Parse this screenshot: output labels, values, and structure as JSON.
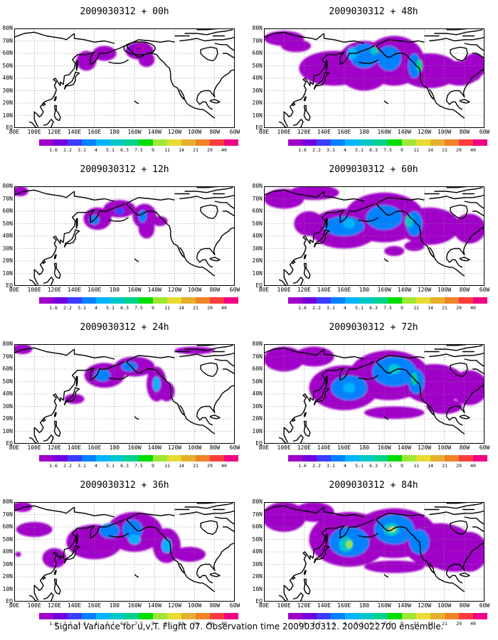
{
  "panels": [
    {
      "title": "2009030312 + 00h",
      "lead": 0
    },
    {
      "title": "2009030312 + 48h",
      "lead": 48
    },
    {
      "title": "2009030312 + 12h",
      "lead": 12
    },
    {
      "title": "2009030312 + 60h",
      "lead": 60
    },
    {
      "title": "2009030312 + 24h",
      "lead": 24
    },
    {
      "title": "2009030312 + 72h",
      "lead": 72
    },
    {
      "title": "2009030312 + 36h",
      "lead": 36
    },
    {
      "title": "2009030312 + 84h",
      "lead": 84
    }
  ],
  "axes": {
    "lon_labels": [
      "80E",
      "100E",
      "120E",
      "140E",
      "160E",
      "180",
      "160W",
      "140W",
      "120W",
      "100W",
      "80W",
      "60W"
    ],
    "lat_labels": [
      "80N",
      "70N",
      "60N",
      "50N",
      "40N",
      "30N",
      "20N",
      "10N",
      "EQ"
    ],
    "lon_range": [
      80,
      300
    ],
    "lat_range": [
      0,
      80
    ]
  },
  "colorbar": {
    "levels": [
      "1.6",
      "2.2",
      "3.1",
      "4",
      "5.1",
      "6.3",
      "7.5",
      "9",
      "11",
      "14",
      "21",
      "29",
      "40"
    ],
    "colors": [
      "#a000c8",
      "#7300dc",
      "#3c3cff",
      "#0082ff",
      "#00b4ff",
      "#00c8c8",
      "#00d28c",
      "#00dc00",
      "#a0e632",
      "#e6dc32",
      "#e6af2d",
      "#f08228",
      "#fa3c3c",
      "#f00082"
    ]
  },
  "footer": "Signal Variance for u,v,T. Flight 07. Observation time 2009030312. 2009022700 ensemble."
}
